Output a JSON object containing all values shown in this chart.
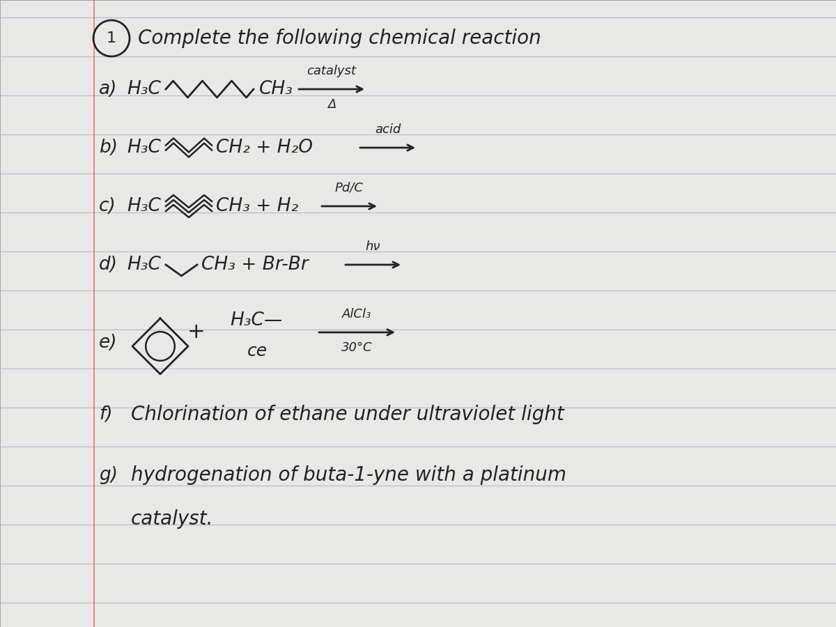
{
  "bg_color": "#c8c8c8",
  "paper_color": "#e8e9e6",
  "line_color": "#9fb3c8",
  "margin_color": "#e06060",
  "text_color": "#222222",
  "title": "Complete the following chemical reaction",
  "circle_label": "1",
  "row_a_label": "a)",
  "row_a_h3c": "H₃C",
  "row_a_ch3": "CH₃",
  "row_a_above": "catalyst",
  "row_a_below": "Δ",
  "row_b_label": "b)",
  "row_b_h3c": "H₃C",
  "row_b_rest": "CH₂ + H₂O",
  "row_b_above": "acid",
  "row_c_label": "c)",
  "row_c_h3c": "H₃C",
  "row_c_rest": "CH₃ + H₂",
  "row_c_above": "Pd/C",
  "row_d_label": "d)",
  "row_d_h3c": "H₃C",
  "row_d_rest": "CH₃ + Br-Br",
  "row_d_above": "hν",
  "row_e_label": "e)",
  "row_e_plus": "+",
  "row_e_h3c": "H₃C",
  "row_e_cl": "ce",
  "row_e_above": "AlCl₃",
  "row_e_below": "30°C",
  "row_f_label": "f)",
  "row_f_text": "Chlorination of ethane under ultraviolet light",
  "row_g_label": "g)",
  "row_g_text": "hydrogenation of buta-1-yne with a platinum",
  "row_g_text2": "catalyst."
}
